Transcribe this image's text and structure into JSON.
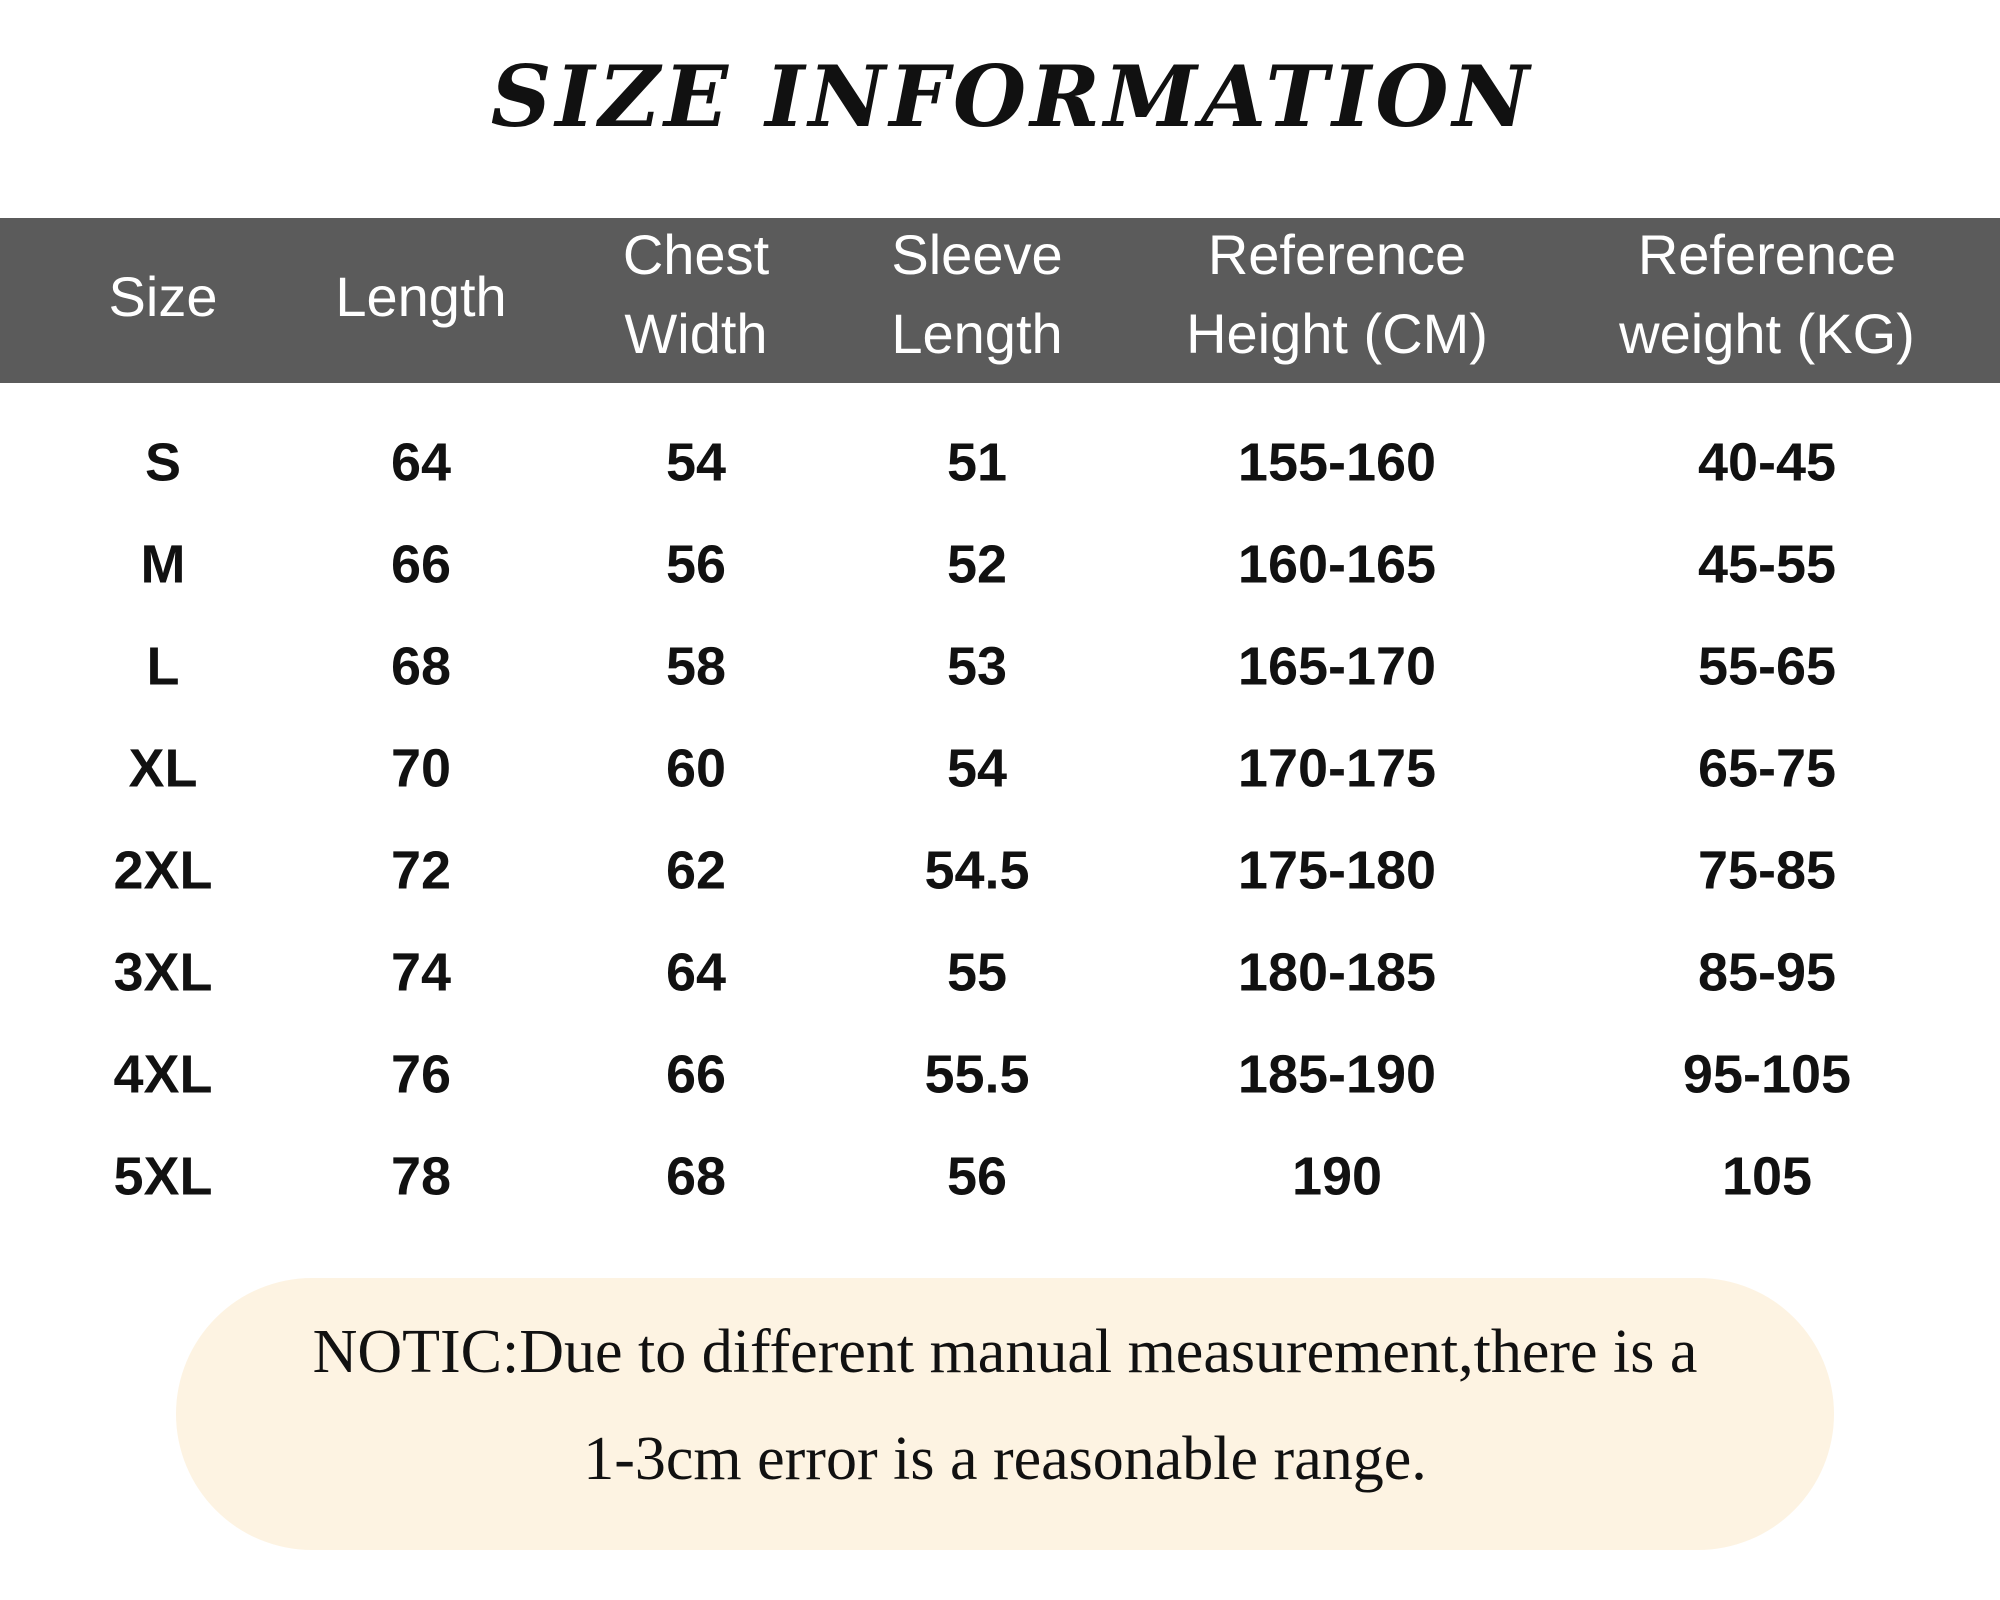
{
  "title": "SIZE INFORMATION",
  "table": {
    "header": [
      [
        "Size"
      ],
      [
        "Length"
      ],
      [
        "Chest",
        "Width"
      ],
      [
        "Sleeve",
        "Length"
      ],
      [
        "Reference",
        "Height (CM)"
      ],
      [
        "Reference",
        "weight (KG)"
      ]
    ],
    "rows": [
      [
        "S",
        "64",
        "54",
        "51",
        "155-160",
        "40-45"
      ],
      [
        "M",
        "66",
        "56",
        "52",
        "160-165",
        "45-55"
      ],
      [
        "L",
        "68",
        "58",
        "53",
        "165-170",
        "55-65"
      ],
      [
        "XL",
        "70",
        "60",
        "54",
        "170-175",
        "65-75"
      ],
      [
        "2XL",
        "72",
        "62",
        "54.5",
        "175-180",
        "75-85"
      ],
      [
        "3XL",
        "74",
        "64",
        "55",
        "180-185",
        "85-95"
      ],
      [
        "4XL",
        "76",
        "66",
        "55.5",
        "185-190",
        "95-105"
      ],
      [
        "5XL",
        "78",
        "68",
        "56",
        "190",
        "105"
      ]
    ]
  },
  "note": [
    "NOTIC:Due to different manual measurement,there is a",
    "1-3cm error is a reasonable range."
  ]
}
